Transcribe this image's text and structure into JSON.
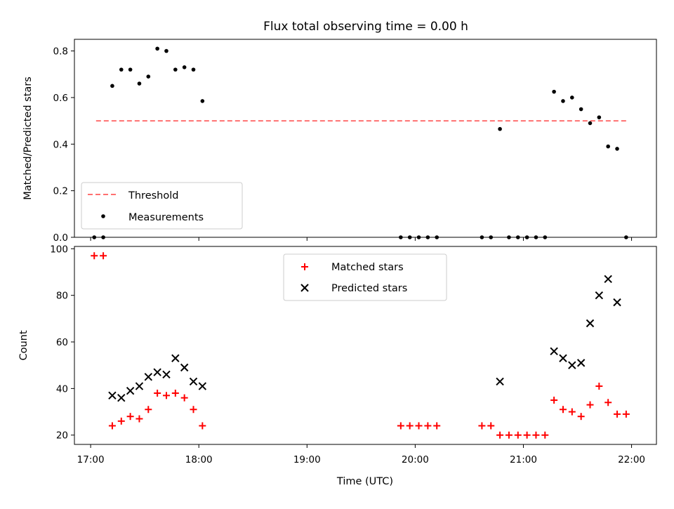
{
  "chart_data": [
    {
      "type": "scatter",
      "title": "Flux total observing time = 0.00 h",
      "xlabel": "",
      "ylabel": "Matched/Predicted stars",
      "ylim": [
        0,
        0.85
      ],
      "yticks": [
        "0.0",
        "0.2",
        "0.4",
        "0.6",
        "0.8"
      ],
      "ytick_values": [
        0,
        0.2,
        0.4,
        0.6,
        0.8
      ],
      "xlim_hours": [
        16.85,
        22.23
      ],
      "legend_position": "lower-left",
      "grid": false,
      "threshold": {
        "name": "Threshold",
        "value": 0.5,
        "x_start": 17.05,
        "x_end": 21.95,
        "color": "#ff7070",
        "style": "dashed"
      },
      "series": [
        {
          "name": "Measurements",
          "marker": "dot",
          "color": "#000000",
          "x_time": [
            "17:02",
            "17:07",
            "17:12",
            "17:17",
            "17:22",
            "17:27",
            "17:32",
            "17:37",
            "17:42",
            "17:47",
            "17:52",
            "17:57",
            "18:02",
            "19:52",
            "19:57",
            "20:02",
            "20:07",
            "20:12",
            "20:37",
            "20:42",
            "20:47",
            "20:52",
            "20:57",
            "21:02",
            "21:07",
            "21:12",
            "21:17",
            "21:22",
            "21:27",
            "21:32",
            "21:37",
            "21:42",
            "21:47",
            "21:52",
            "21:57"
          ],
          "y": [
            0.0,
            0.0,
            0.65,
            0.72,
            0.72,
            0.66,
            0.69,
            0.81,
            0.8,
            0.72,
            0.73,
            0.72,
            0.585,
            0.0,
            0.0,
            0.0,
            0.0,
            0.0,
            0.0,
            0.0,
            0.465,
            0.0,
            0.0,
            0.0,
            0.0,
            0.0,
            0.625,
            0.585,
            0.6,
            0.55,
            0.49,
            0.515,
            0.39,
            0.38,
            0.0
          ]
        }
      ]
    },
    {
      "type": "scatter",
      "title": "",
      "xlabel": "Time (UTC)",
      "ylabel": "Count",
      "ylim": [
        16,
        101
      ],
      "yticks": [
        "20",
        "40",
        "60",
        "80",
        "100"
      ],
      "ytick_values": [
        20,
        40,
        60,
        80,
        100
      ],
      "xticks": [
        "17:00",
        "18:00",
        "19:00",
        "20:00",
        "21:00",
        "22:00"
      ],
      "xtick_hours": [
        17,
        18,
        19,
        20,
        21,
        22
      ],
      "xlim_hours": [
        16.85,
        22.23
      ],
      "legend_position": "upper-center",
      "grid": false,
      "series": [
        {
          "name": "Matched stars",
          "marker": "plus",
          "color": "#ff0000",
          "x_time": [
            "17:02",
            "17:07",
            "17:12",
            "17:17",
            "17:22",
            "17:27",
            "17:32",
            "17:37",
            "17:42",
            "17:47",
            "17:52",
            "17:57",
            "18:02",
            "19:52",
            "19:57",
            "20:02",
            "20:07",
            "20:12",
            "20:37",
            "20:42",
            "20:47",
            "20:52",
            "20:57",
            "21:02",
            "21:07",
            "21:12",
            "21:17",
            "21:22",
            "21:27",
            "21:32",
            "21:37",
            "21:42",
            "21:47",
            "21:52",
            "21:57"
          ],
          "y": [
            97,
            97,
            24,
            26,
            28,
            27,
            31,
            38,
            37,
            38,
            36,
            31,
            24,
            24,
            24,
            24,
            24,
            24,
            24,
            24,
            20,
            20,
            20,
            20,
            20,
            20,
            35,
            31,
            30,
            28,
            33,
            41,
            34,
            29,
            29
          ]
        },
        {
          "name": "Predicted stars",
          "marker": "x",
          "color": "#000000",
          "x_time": [
            "17:12",
            "17:17",
            "17:22",
            "17:27",
            "17:32",
            "17:37",
            "17:42",
            "17:47",
            "17:52",
            "17:57",
            "18:02",
            "20:47",
            "21:17",
            "21:22",
            "21:27",
            "21:32",
            "21:37",
            "21:42",
            "21:47",
            "21:52"
          ],
          "y": [
            37,
            36,
            39,
            41,
            45,
            47,
            46,
            53,
            49,
            43,
            41,
            43,
            56,
            53,
            50,
            51,
            68,
            80,
            87,
            77
          ]
        }
      ]
    }
  ]
}
